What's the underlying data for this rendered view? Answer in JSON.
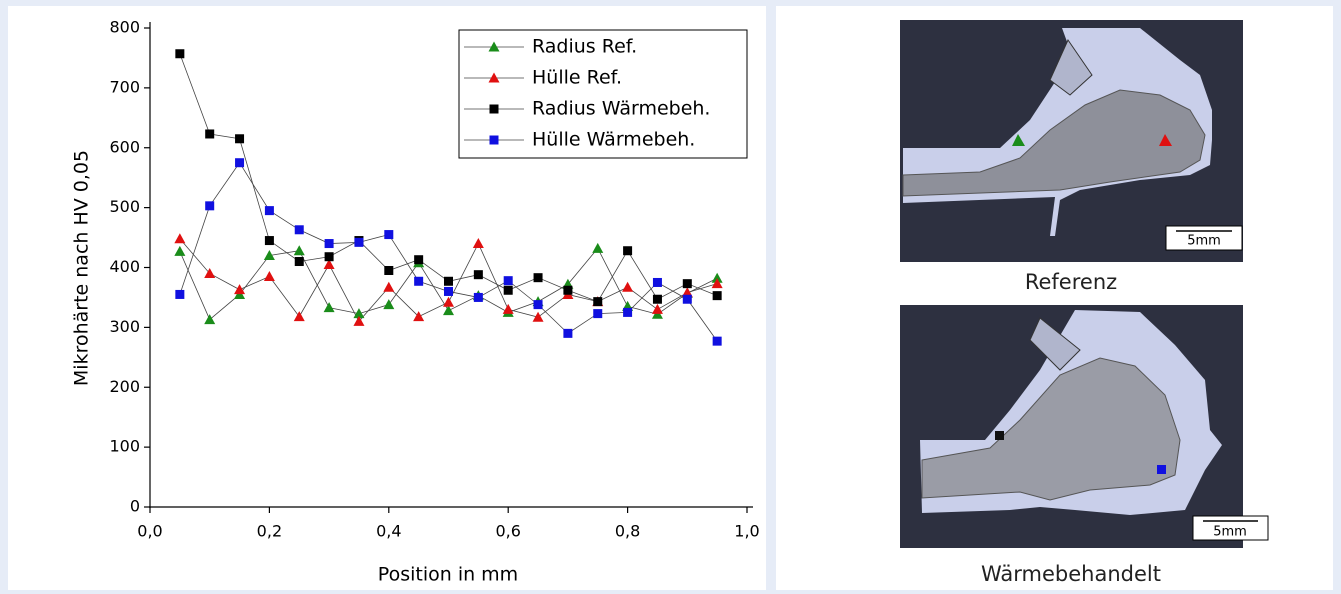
{
  "chart_data": {
    "type": "line",
    "x_label": "Position in mm",
    "y_label": "Mikrohärte nach HV 0,05",
    "x": [
      0.05,
      0.1,
      0.15,
      0.2,
      0.25,
      0.3,
      0.35,
      0.4,
      0.45,
      0.5,
      0.55,
      0.6,
      0.65,
      0.7,
      0.75,
      0.8,
      0.85,
      0.9,
      0.95
    ],
    "series": [
      {
        "name": "Radius Ref.",
        "color": "#1a8c1a",
        "marker": "triangle",
        "values": [
          427,
          313,
          355,
          420,
          428,
          333,
          323,
          338,
          408,
          328,
          353,
          325,
          343,
          372,
          432,
          335,
          322,
          357,
          382
        ]
      },
      {
        "name": "Hülle Ref.",
        "color": "#e01010",
        "marker": "triangle",
        "values": [
          448,
          390,
          363,
          385,
          318,
          405,
          310,
          367,
          318,
          342,
          440,
          330,
          317,
          355,
          343,
          367,
          330,
          358,
          373
        ]
      },
      {
        "name": "Radius Wärmebeh.",
        "color": "#000000",
        "marker": "square",
        "values": [
          757,
          623,
          615,
          445,
          410,
          418,
          445,
          395,
          413,
          377,
          388,
          362,
          383,
          362,
          343,
          428,
          347,
          373,
          353
        ]
      },
      {
        "name": "Hülle Wärmebeh.",
        "color": "#1010e0",
        "marker": "square",
        "values": [
          355,
          503,
          575,
          495,
          463,
          440,
          442,
          455,
          377,
          360,
          350,
          378,
          338,
          290,
          323,
          325,
          375,
          347,
          277
        ]
      }
    ],
    "xlim": [
      0,
      1
    ],
    "xticks": [
      {
        "value": 0,
        "label": "0,0"
      },
      {
        "value": 0.2,
        "label": "0,2"
      },
      {
        "value": 0.4,
        "label": "0,4"
      },
      {
        "value": 0.6,
        "label": "0,6"
      },
      {
        "value": 0.8,
        "label": "0,8"
      },
      {
        "value": 1,
        "label": "1,0"
      }
    ],
    "ylim": [
      0,
      800
    ],
    "yticks": [
      0,
      100,
      200,
      300,
      400,
      500,
      600,
      700,
      800
    ],
    "legend": "upper right"
  },
  "images": [
    {
      "caption": "Referenz",
      "scale_bar": "5mm"
    },
    {
      "caption": "Wärmebehandelt",
      "scale_bar": "5mm"
    }
  ]
}
